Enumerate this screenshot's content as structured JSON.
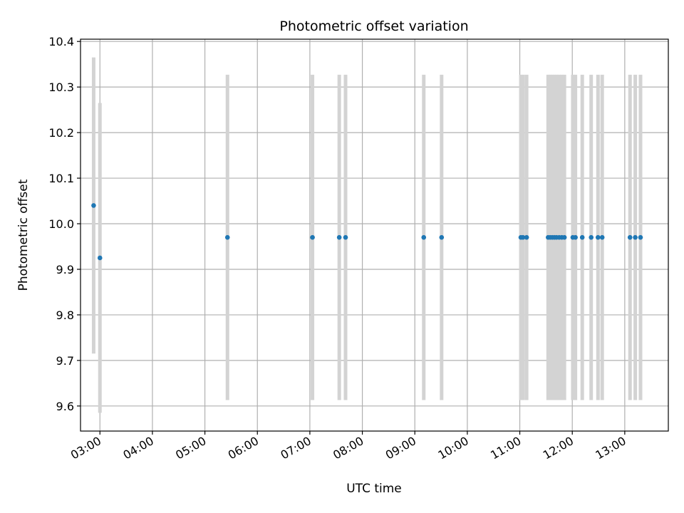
{
  "chart_data": {
    "type": "scatter",
    "title": "Photometric offset variation",
    "xlabel": "UTC time",
    "ylabel": "Photometric offset",
    "x_unit": "hours UTC",
    "xlim": [
      2.63,
      13.83
    ],
    "ylim": [
      9.545,
      10.405
    ],
    "x_tick_values": [
      3,
      4,
      5,
      6,
      7,
      8,
      9,
      10,
      11,
      12,
      13
    ],
    "x_tick_labels": [
      "03:00",
      "04:00",
      "05:00",
      "06:00",
      "07:00",
      "08:00",
      "09:00",
      "10:00",
      "11:00",
      "12:00",
      "13:00"
    ],
    "y_tick_values": [
      9.6,
      9.7,
      9.8,
      9.9,
      10.0,
      10.1,
      10.2,
      10.3,
      10.4
    ],
    "y_tick_labels": [
      "9.6",
      "9.7",
      "9.8",
      "9.9",
      "10.0",
      "10.1",
      "10.2",
      "10.3",
      "10.4"
    ],
    "grid": true,
    "point_color": "#1f77b4",
    "errorbar_color": "#d3d3d3",
    "points": [
      {
        "x": 2.88,
        "y": 10.04,
        "err": 0.325
      },
      {
        "x": 3.0,
        "y": 9.925,
        "err": 0.34
      },
      {
        "x": 5.43,
        "y": 9.97,
        "err": 0.357
      },
      {
        "x": 7.05,
        "y": 9.97,
        "err": 0.357
      },
      {
        "x": 7.56,
        "y": 9.97,
        "err": 0.357
      },
      {
        "x": 7.68,
        "y": 9.97,
        "err": 0.357
      },
      {
        "x": 9.17,
        "y": 9.97,
        "err": 0.357
      },
      {
        "x": 9.51,
        "y": 9.97,
        "err": 0.357
      },
      {
        "x": 11.02,
        "y": 9.97,
        "err": 0.357
      },
      {
        "x": 11.06,
        "y": 9.97,
        "err": 0.357
      },
      {
        "x": 11.13,
        "y": 9.97,
        "err": 0.357
      },
      {
        "x": 11.54,
        "y": 9.97,
        "err": 0.357
      },
      {
        "x": 11.58,
        "y": 9.97,
        "err": 0.357
      },
      {
        "x": 11.62,
        "y": 9.97,
        "err": 0.357
      },
      {
        "x": 11.66,
        "y": 9.97,
        "err": 0.357
      },
      {
        "x": 11.7,
        "y": 9.97,
        "err": 0.357
      },
      {
        "x": 11.75,
        "y": 9.97,
        "err": 0.357
      },
      {
        "x": 11.8,
        "y": 9.97,
        "err": 0.357
      },
      {
        "x": 11.85,
        "y": 9.97,
        "err": 0.357
      },
      {
        "x": 12.01,
        "y": 9.97,
        "err": 0.357
      },
      {
        "x": 12.06,
        "y": 9.97,
        "err": 0.357
      },
      {
        "x": 12.19,
        "y": 9.97,
        "err": 0.357
      },
      {
        "x": 12.36,
        "y": 9.97,
        "err": 0.357
      },
      {
        "x": 12.49,
        "y": 9.97,
        "err": 0.357
      },
      {
        "x": 12.57,
        "y": 9.97,
        "err": 0.357
      },
      {
        "x": 13.1,
        "y": 9.97,
        "err": 0.357
      },
      {
        "x": 13.2,
        "y": 9.97,
        "err": 0.357
      },
      {
        "x": 13.3,
        "y": 9.97,
        "err": 0.357
      }
    ]
  }
}
